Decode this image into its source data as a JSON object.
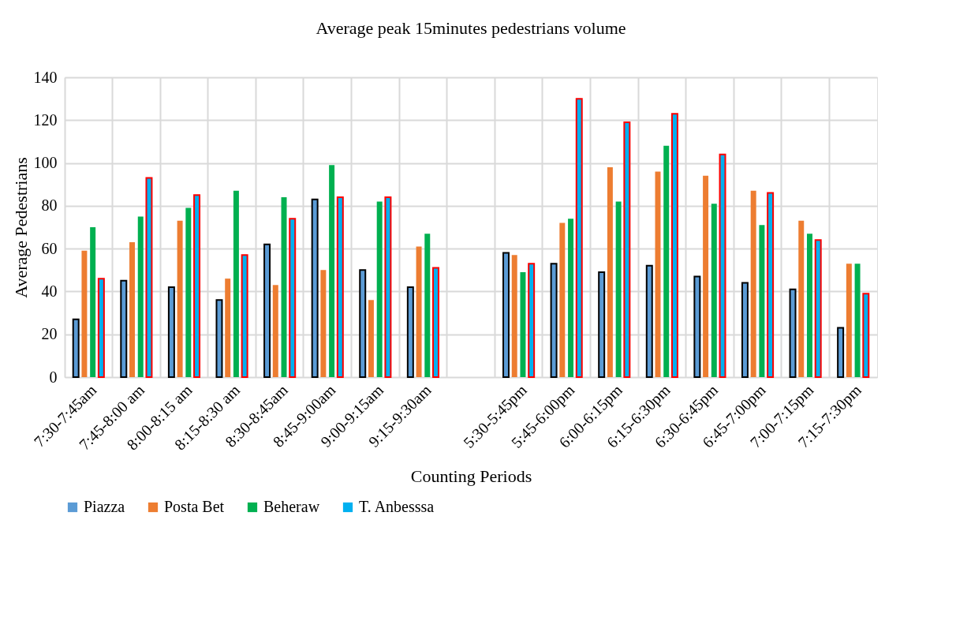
{
  "chart_data": {
    "type": "bar",
    "title": "Average peak 15minutes pedestrians volume",
    "xlabel": "Counting Periods",
    "ylabel": "Average Pedestrians",
    "categories": [
      "7:30-7:45am",
      "7:45-8:00 am",
      "8:00-8:15 am",
      "8:15-8:30 am",
      "8:30-8:45am",
      "8:45-9:00am",
      "9:00-9:15am",
      "9:15-9:30am",
      null,
      "5:30-5:45pm",
      "5:45-6:00pm",
      "6:00-6:15pm",
      "6:15-6:30pm",
      "6:30-6:45pm",
      "6:45-7:00pm",
      "7:00-7:15pm",
      "7:15-7:30pm"
    ],
    "series": [
      {
        "name": "Piazza",
        "color": "#5b9bd5",
        "values": [
          27,
          45,
          42,
          36,
          62,
          83,
          50,
          42,
          null,
          58,
          53,
          49,
          52,
          47,
          44,
          41,
          23
        ]
      },
      {
        "name": "Posta Bet",
        "color": "#ed7d31",
        "values": [
          59,
          63,
          73,
          46,
          43,
          50,
          36,
          61,
          null,
          57,
          72,
          98,
          96,
          94,
          87,
          73,
          53
        ]
      },
      {
        "name": "Beheraw",
        "color": "#00b050",
        "values": [
          70,
          75,
          79,
          87,
          84,
          99,
          82,
          67,
          null,
          49,
          74,
          82,
          108,
          81,
          71,
          67,
          53
        ]
      },
      {
        "name": "T. Anbesssa",
        "color": "#00b0f0",
        "values": [
          46,
          93,
          85,
          57,
          74,
          84,
          84,
          51,
          null,
          53,
          130,
          119,
          123,
          104,
          86,
          64,
          39
        ]
      }
    ],
    "ylim": [
      0,
      140
    ],
    "yticks": [
      0,
      20,
      40,
      60,
      80,
      100,
      120,
      140
    ],
    "grid": true,
    "legend": "bottom"
  }
}
